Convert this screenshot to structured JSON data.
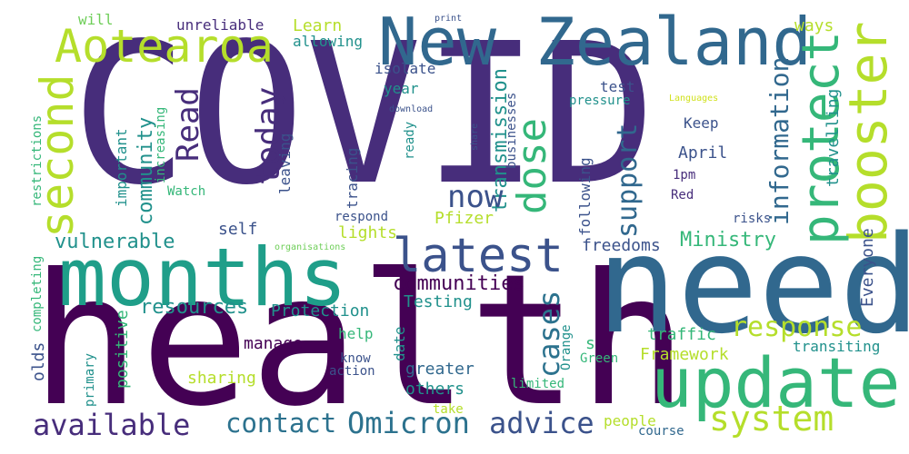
{
  "palette": {
    "dark_purple": "#440154",
    "purple": "#472d7b",
    "indigo": "#3b528b",
    "blue": "#31688e",
    "steel": "#2c728e",
    "teal": "#21918c",
    "sea": "#1f9e89",
    "green": "#35b779",
    "light_green": "#6ece58",
    "lime": "#b5de2b",
    "yellow": "#d0e11c"
  },
  "words": [
    {
      "text": "COVID",
      "color": "#472d7b",
      "rot": 0
    },
    {
      "text": "health",
      "color": "#440154",
      "rot": 0
    },
    {
      "text": "need",
      "color": "#31688e",
      "rot": 0
    },
    {
      "text": "months",
      "color": "#1f9e89",
      "rot": 0
    },
    {
      "text": "New Zealand",
      "color": "#31688e",
      "rot": 0
    },
    {
      "text": "update",
      "color": "#35b779",
      "rot": 0
    },
    {
      "text": "Aotearoa",
      "color": "#b5de2b",
      "rot": 0
    },
    {
      "text": "latest",
      "color": "#3b528b",
      "rot": 0
    },
    {
      "text": "booster",
      "color": "#b5de2b",
      "rot": -90
    },
    {
      "text": "protect",
      "color": "#35b779",
      "rot": -90
    },
    {
      "text": "second",
      "color": "#b5de2b",
      "rot": -90
    },
    {
      "text": "dose",
      "color": "#35b779",
      "rot": -90
    },
    {
      "text": "system",
      "color": "#b5de2b",
      "rot": 0
    },
    {
      "text": "available",
      "color": "#472d7b",
      "rot": 0
    },
    {
      "text": "Omicron",
      "color": "#2c728e",
      "rot": 0
    },
    {
      "text": "advice",
      "color": "#3b528b",
      "rot": 0
    },
    {
      "text": "contact",
      "color": "#2c728e",
      "rot": 0
    },
    {
      "text": "response",
      "color": "#b5de2b",
      "rot": 0
    },
    {
      "text": "information",
      "color": "#31688e",
      "rot": -90
    },
    {
      "text": "today",
      "color": "#472d7b",
      "rot": -90
    },
    {
      "text": "Read",
      "color": "#472d7b",
      "rot": -90
    },
    {
      "text": "support",
      "color": "#31688e",
      "rot": -90
    },
    {
      "text": "cases",
      "color": "#2c728e",
      "rot": -90
    },
    {
      "text": "transmission",
      "color": "#21918c",
      "rot": -90
    },
    {
      "text": "now",
      "color": "#3b528b",
      "rot": 0
    },
    {
      "text": "communities",
      "color": "#440154",
      "rot": 0
    },
    {
      "text": "resources",
      "color": "#21918c",
      "rot": 0
    },
    {
      "text": "vulnerable",
      "color": "#21918c",
      "rot": 0
    },
    {
      "text": "community",
      "color": "#21918c",
      "rot": -90
    },
    {
      "text": "Ministry",
      "color": "#35b779",
      "rot": 0
    },
    {
      "text": "Protection",
      "color": "#21918c",
      "rot": 0
    },
    {
      "text": "Learn",
      "color": "#b5de2b",
      "rot": 0
    },
    {
      "text": "allowing",
      "color": "#21918c",
      "rot": 0
    },
    {
      "text": "unreliable",
      "color": "#472d7b",
      "rot": 0
    },
    {
      "text": "isolate",
      "color": "#3b528b",
      "rot": 0
    },
    {
      "text": "year",
      "color": "#21918c",
      "rot": 0
    },
    {
      "text": "test",
      "color": "#3b528b",
      "rot": 0
    },
    {
      "text": "pressure",
      "color": "#21918c",
      "rot": 0
    },
    {
      "text": "Keep",
      "color": "#3b528b",
      "rot": 0
    },
    {
      "text": "April",
      "color": "#3b528b",
      "rot": 0
    },
    {
      "text": "1pm",
      "color": "#472d7b",
      "rot": 0
    },
    {
      "text": "Red",
      "color": "#472d7b",
      "rot": 0
    },
    {
      "text": "ways",
      "color": "#b5de2b",
      "rot": 0
    },
    {
      "text": "travelling",
      "color": "#21918c",
      "rot": -90
    },
    {
      "text": "Everyone",
      "color": "#3b528b",
      "rot": -90
    },
    {
      "text": "risks",
      "color": "#3b528b",
      "rot": 0
    },
    {
      "text": "freedoms",
      "color": "#3b528b",
      "rot": 0
    },
    {
      "text": "Pfizer",
      "color": "#b5de2b",
      "rot": 0
    },
    {
      "text": "lights",
      "color": "#b5de2b",
      "rot": 0
    },
    {
      "text": "self",
      "color": "#3b528b",
      "rot": 0
    },
    {
      "text": "respond",
      "color": "#3b528b",
      "rot": 0
    },
    {
      "text": "Testing",
      "color": "#21918c",
      "rot": 0
    },
    {
      "text": "manage",
      "color": "#440154",
      "rot": 0
    },
    {
      "text": "help",
      "color": "#35b779",
      "rot": 0
    },
    {
      "text": "positive",
      "color": "#35b779",
      "rot": -90
    },
    {
      "text": "sharing",
      "color": "#b5de2b",
      "rot": 0
    },
    {
      "text": "greater",
      "color": "#31688e",
      "rot": 0
    },
    {
      "text": "others",
      "color": "#21918c",
      "rot": 0
    },
    {
      "text": "take",
      "color": "#b5de2b",
      "rot": 0
    },
    {
      "text": "people",
      "color": "#b5de2b",
      "rot": 0
    },
    {
      "text": "course",
      "color": "#31688e",
      "rot": 0
    },
    {
      "text": "traffic",
      "color": "#35b779",
      "rot": 0
    },
    {
      "text": "Framework",
      "color": "#b5de2b",
      "rot": 0
    },
    {
      "text": "transiting",
      "color": "#21918c",
      "rot": 0
    },
    {
      "text": "s",
      "color": "#35b779",
      "rot": 0
    },
    {
      "text": "Green",
      "color": "#35b779",
      "rot": 0
    },
    {
      "text": "limited",
      "color": "#35b779",
      "rot": 0
    },
    {
      "text": "action",
      "color": "#3b528b",
      "rot": 0
    },
    {
      "text": "know",
      "color": "#3b528b",
      "rot": 0
    },
    {
      "text": "date",
      "color": "#21918c",
      "rot": -90
    },
    {
      "text": "Orange",
      "color": "#21918c",
      "rot": -90
    },
    {
      "text": "olds",
      "color": "#3b528b",
      "rot": -90
    },
    {
      "text": "primary",
      "color": "#21918c",
      "rot": -90
    },
    {
      "text": "completing",
      "color": "#35b779",
      "rot": -90
    },
    {
      "text": "organisations",
      "color": "#6ece58",
      "rot": 0
    },
    {
      "text": "important",
      "color": "#21918c",
      "rot": -90
    },
    {
      "text": "increasing",
      "color": "#35b779",
      "rot": -90
    },
    {
      "text": "restrictions",
      "color": "#35b779",
      "rot": -90
    },
    {
      "text": "Watch",
      "color": "#35b779",
      "rot": 0
    },
    {
      "text": "leaving",
      "color": "#3b528b",
      "rot": -90
    },
    {
      "text": "tracing",
      "color": "#3b528b",
      "rot": -90
    },
    {
      "text": "ready",
      "color": "#21918c",
      "rot": -90
    },
    {
      "text": "download",
      "color": "#3b528b",
      "rot": 0
    },
    {
      "text": "businesses",
      "color": "#3b528b",
      "rot": -90
    },
    {
      "text": "following",
      "color": "#3b528b",
      "rot": -90
    },
    {
      "text": "share",
      "color": "#3b528b",
      "rot": -90
    },
    {
      "text": "Languages",
      "color": "#d0e11c",
      "rot": 0
    },
    {
      "text": "print",
      "color": "#3b528b",
      "rot": 0
    },
    {
      "text": "will",
      "color": "#6ece58",
      "rot": 0
    }
  ]
}
